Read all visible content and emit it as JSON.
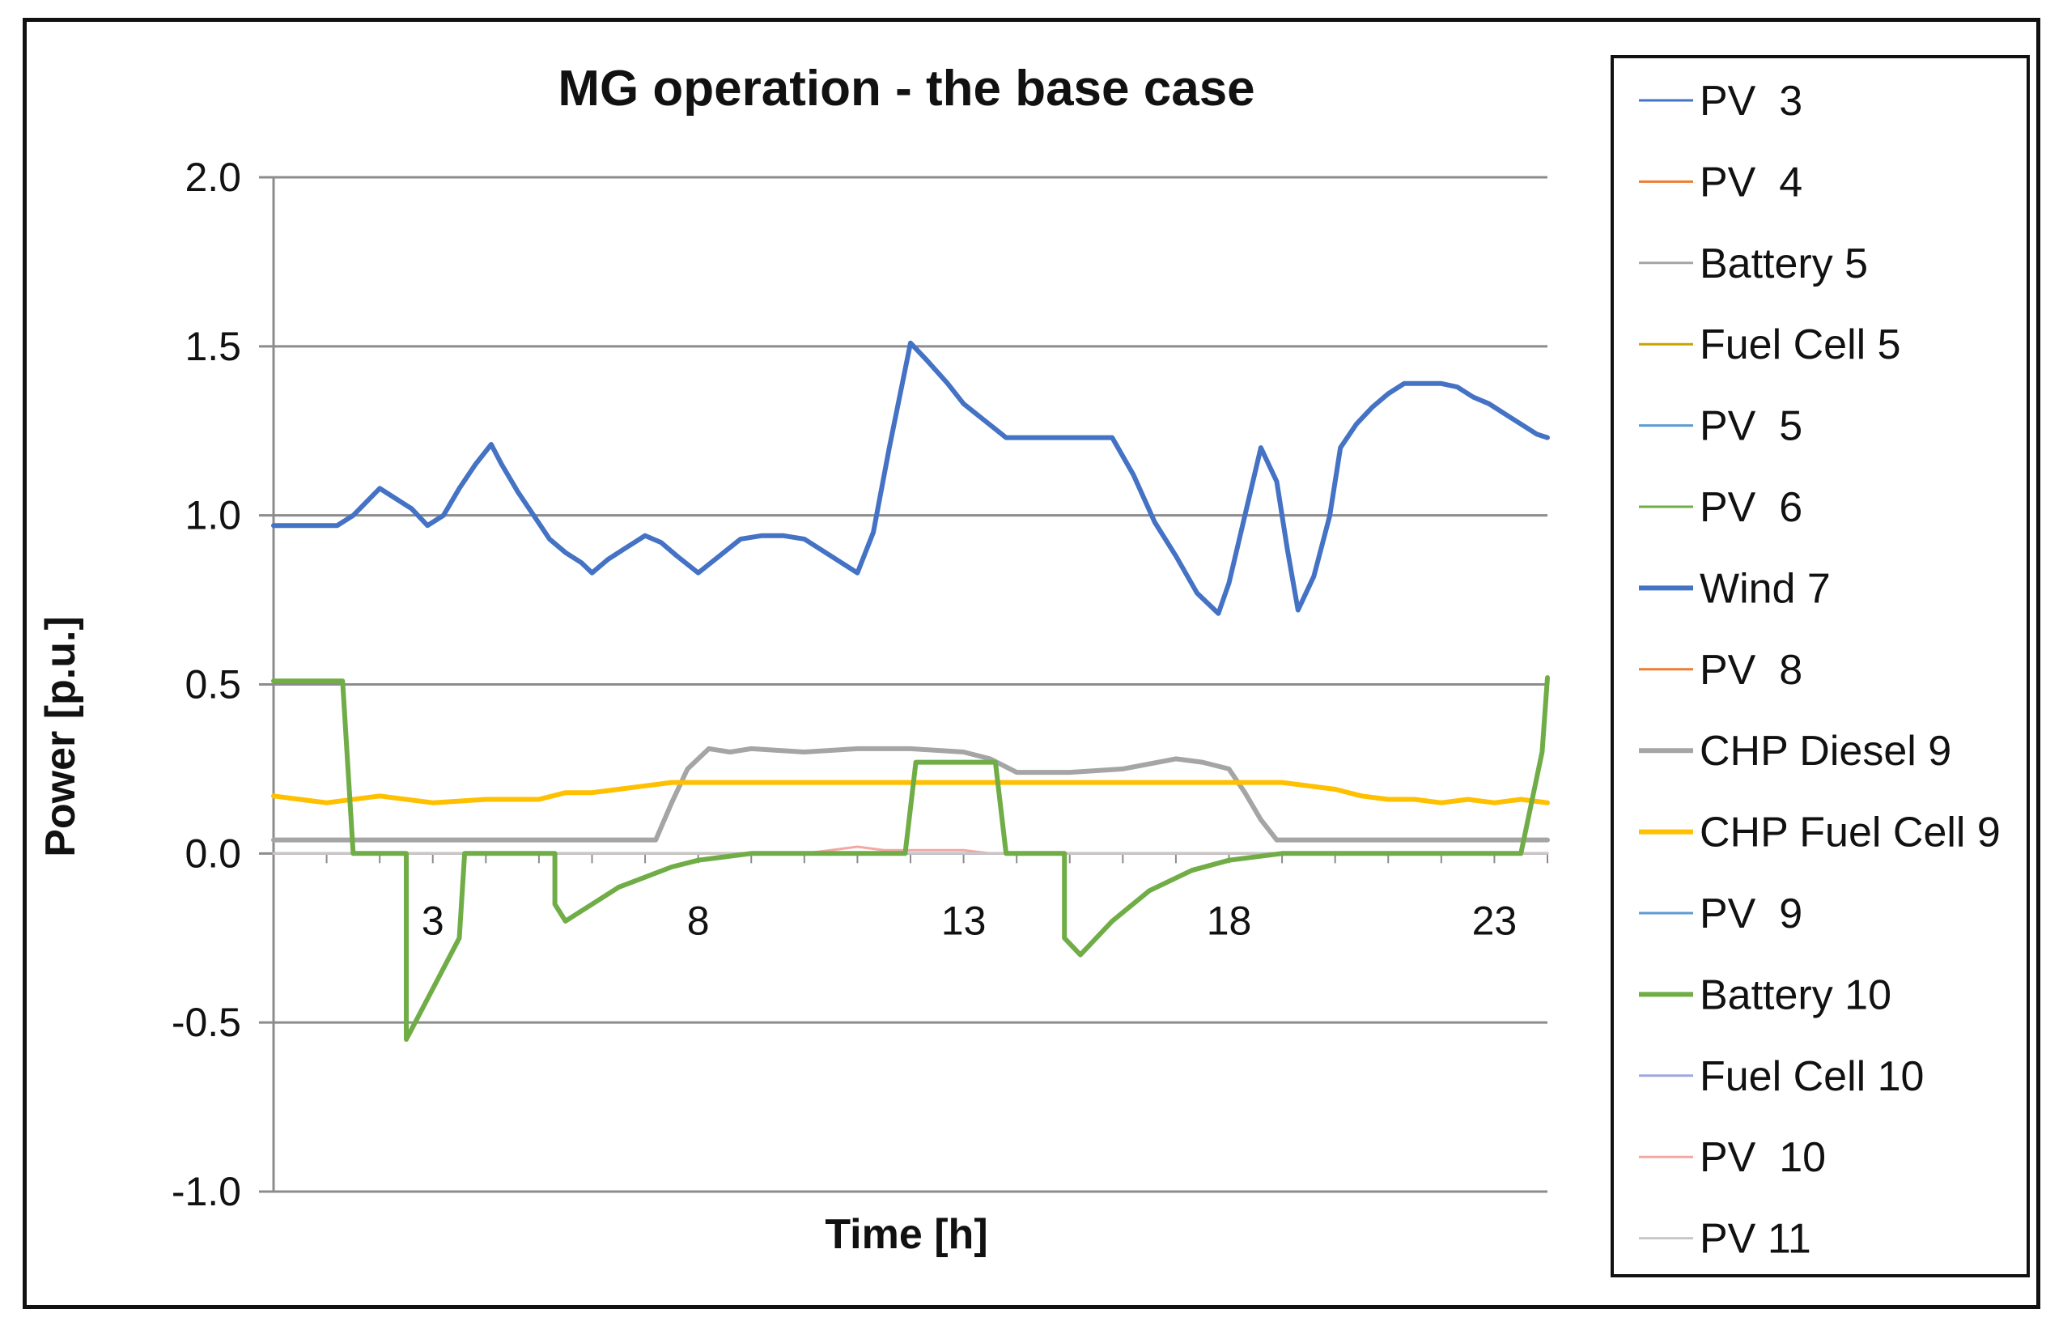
{
  "chart_data": {
    "type": "line",
    "title": "MG operation - the base case",
    "xlabel": "Time [h]",
    "ylabel": "Power [p.u.]",
    "xlim": [
      0,
      24
    ],
    "ylim": [
      -1.0,
      2.0
    ],
    "yticks": [
      2.0,
      1.5,
      1.0,
      0.5,
      0.0,
      -0.5,
      -1.0
    ],
    "ytick_labels": [
      "2.0",
      "1.5",
      "1.0",
      "0.5",
      "0.0",
      "-0.5",
      "-1.0"
    ],
    "xticks": [
      3,
      8,
      13,
      18,
      23
    ],
    "xtick_labels": [
      "3",
      "8",
      "13",
      "18",
      "23"
    ],
    "grid": "horizontal",
    "legend_position": "right",
    "series": [
      {
        "name": "PV  3",
        "color": "#4472C4",
        "width": "thin",
        "x": [
          0,
          24
        ],
        "y": [
          0,
          0
        ]
      },
      {
        "name": "PV  4",
        "color": "#ED7D31",
        "width": "thin",
        "x": [
          0,
          24
        ],
        "y": [
          0,
          0
        ]
      },
      {
        "name": "Battery 5",
        "color": "#A5A5A5",
        "width": "thin",
        "x": [
          0,
          24
        ],
        "y": [
          0,
          0
        ]
      },
      {
        "name": "Fuel Cell 5",
        "color": "#C9A400",
        "width": "thin",
        "x": [
          0,
          24
        ],
        "y": [
          0,
          0
        ]
      },
      {
        "name": "PV  5",
        "color": "#5B9BD5",
        "width": "thin",
        "x": [
          0,
          24
        ],
        "y": [
          0,
          0
        ]
      },
      {
        "name": "PV  6",
        "color": "#70AD47",
        "width": "thin",
        "x": [
          0,
          24
        ],
        "y": [
          0,
          0
        ]
      },
      {
        "name": "Wind 7",
        "color": "#4472C4",
        "width": "thick",
        "x": [
          0,
          1.2,
          1.5,
          2.0,
          2.3,
          2.6,
          2.9,
          3.2,
          3.5,
          3.8,
          4.1,
          4.3,
          4.6,
          4.9,
          5.2,
          5.5,
          5.8,
          6.0,
          6.3,
          6.6,
          7.0,
          7.3,
          7.6,
          8.0,
          8.4,
          8.8,
          9.2,
          9.6,
          10.0,
          10.4,
          10.7,
          11.0,
          11.3,
          11.6,
          12.0,
          12.3,
          12.7,
          13.0,
          13.4,
          13.8,
          14.2,
          14.6,
          15.0,
          15.4,
          15.8,
          16.2,
          16.6,
          17.0,
          17.4,
          17.8,
          18.0,
          18.3,
          18.6,
          18.9,
          19.1,
          19.3,
          19.6,
          19.9,
          20.1,
          20.4,
          20.7,
          21.0,
          21.3,
          21.6,
          22.0,
          22.3,
          22.6,
          22.9,
          23.2,
          23.5,
          23.8,
          24.0
        ],
        "y": [
          0.97,
          0.97,
          1.0,
          1.08,
          1.05,
          1.02,
          0.97,
          1.0,
          1.08,
          1.15,
          1.21,
          1.15,
          1.07,
          1.0,
          0.93,
          0.89,
          0.86,
          0.83,
          0.87,
          0.9,
          0.94,
          0.92,
          0.88,
          0.83,
          0.88,
          0.93,
          0.94,
          0.94,
          0.93,
          0.89,
          0.86,
          0.83,
          0.95,
          1.2,
          1.51,
          1.46,
          1.39,
          1.33,
          1.28,
          1.23,
          1.23,
          1.23,
          1.23,
          1.23,
          1.23,
          1.12,
          0.98,
          0.88,
          0.77,
          0.71,
          0.8,
          1.0,
          1.2,
          1.1,
          0.9,
          0.72,
          0.82,
          1.0,
          1.2,
          1.27,
          1.32,
          1.36,
          1.39,
          1.39,
          1.39,
          1.38,
          1.35,
          1.33,
          1.3,
          1.27,
          1.24,
          1.23
        ]
      },
      {
        "name": "PV  8",
        "color": "#ED7D31",
        "width": "thin",
        "x": [
          0,
          24
        ],
        "y": [
          0,
          0
        ]
      },
      {
        "name": "CHP Diesel 9",
        "color": "#A5A5A5",
        "width": "thick",
        "x": [
          0,
          7.2,
          7.5,
          7.8,
          8.2,
          8.6,
          9.0,
          10.0,
          11.0,
          12.0,
          13.0,
          13.5,
          14.0,
          15.0,
          16.0,
          17.0,
          17.5,
          18.0,
          18.3,
          18.6,
          18.9,
          24.0
        ],
        "y": [
          0.04,
          0.04,
          0.15,
          0.25,
          0.31,
          0.3,
          0.31,
          0.3,
          0.31,
          0.31,
          0.3,
          0.28,
          0.24,
          0.24,
          0.25,
          0.28,
          0.27,
          0.25,
          0.18,
          0.1,
          0.04,
          0.04
        ]
      },
      {
        "name": "CHP Fuel Cell 9",
        "color": "#FFC000",
        "width": "thick",
        "x": [
          0,
          1.0,
          2.0,
          3.0,
          4.0,
          5.0,
          5.5,
          6.0,
          6.5,
          7.0,
          7.5,
          8.0,
          10.0,
          12.0,
          14.0,
          16.0,
          18.0,
          19.0,
          19.5,
          20.0,
          20.5,
          21.0,
          21.5,
          22.0,
          22.5,
          23.0,
          23.5,
          24.0
        ],
        "y": [
          0.17,
          0.15,
          0.17,
          0.15,
          0.16,
          0.16,
          0.18,
          0.18,
          0.19,
          0.2,
          0.21,
          0.21,
          0.21,
          0.21,
          0.21,
          0.21,
          0.21,
          0.21,
          0.2,
          0.19,
          0.17,
          0.16,
          0.16,
          0.15,
          0.16,
          0.15,
          0.16,
          0.15
        ]
      },
      {
        "name": "PV  9",
        "color": "#5B9BD5",
        "width": "thin",
        "x": [
          0,
          24
        ],
        "y": [
          0,
          0
        ]
      },
      {
        "name": "Battery 10",
        "color": "#70AD47",
        "width": "thick",
        "x": [
          0,
          1.3,
          1.5,
          2.5,
          2.5,
          3.0,
          3.5,
          3.6,
          3.6,
          5.3,
          5.3,
          5.5,
          6.0,
          6.5,
          7.0,
          7.5,
          8.0,
          9.0,
          11.9,
          12.1,
          13.6,
          13.8,
          14.9,
          14.9,
          15.2,
          15.8,
          16.5,
          17.3,
          18.0,
          19.0,
          23.5,
          23.9,
          24.0
        ],
        "y": [
          0.51,
          0.51,
          0.0,
          0.0,
          -0.55,
          -0.4,
          -0.25,
          0.0,
          0.0,
          0.0,
          -0.15,
          -0.2,
          -0.15,
          -0.1,
          -0.07,
          -0.04,
          -0.02,
          0.0,
          0.0,
          0.27,
          0.27,
          0.0,
          0.0,
          -0.25,
          -0.3,
          -0.2,
          -0.11,
          -0.05,
          -0.02,
          0.0,
          0.0,
          0.3,
          0.52
        ]
      },
      {
        "name": "Fuel Cell 10",
        "color": "#9DA9DD",
        "width": "thin",
        "x": [
          0,
          24
        ],
        "y": [
          0,
          0
        ]
      },
      {
        "name": "PV  10",
        "color": "#F4A7A3",
        "width": "thin",
        "x": [
          0,
          10.0,
          10.5,
          11.0,
          11.5,
          12.0,
          12.5,
          13.0,
          13.5,
          24.0
        ],
        "y": [
          0,
          0,
          0.01,
          0.02,
          0.01,
          0.01,
          0.01,
          0.01,
          0,
          0
        ]
      },
      {
        "name": "PV 11",
        "color": "#C8C8C8",
        "width": "thin",
        "x": [
          0,
          24
        ],
        "y": [
          0,
          0
        ]
      }
    ]
  }
}
